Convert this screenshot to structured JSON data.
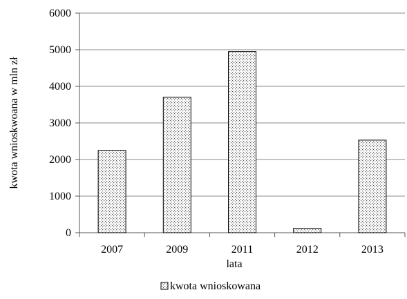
{
  "chart_data": {
    "type": "bar",
    "title": "",
    "xlabel": "lata",
    "ylabel": "kwota wnioskwoana w mln zł",
    "categories": [
      "2007",
      "2009",
      "2011",
      "2012",
      "2013"
    ],
    "series": [
      {
        "name": "kwota wnioskowana",
        "values": [
          2250,
          3700,
          4950,
          120,
          2530
        ]
      }
    ],
    "ylim": [
      0,
      6000
    ],
    "yticks": [
      0,
      1000,
      2000,
      3000,
      4000,
      5000,
      6000
    ],
    "grid": true,
    "legend_position": "bottom",
    "bar_fill": "dotted",
    "colors": {
      "bar_border": "#000000",
      "bar_dot": "#555555",
      "grid": "#888888"
    }
  }
}
